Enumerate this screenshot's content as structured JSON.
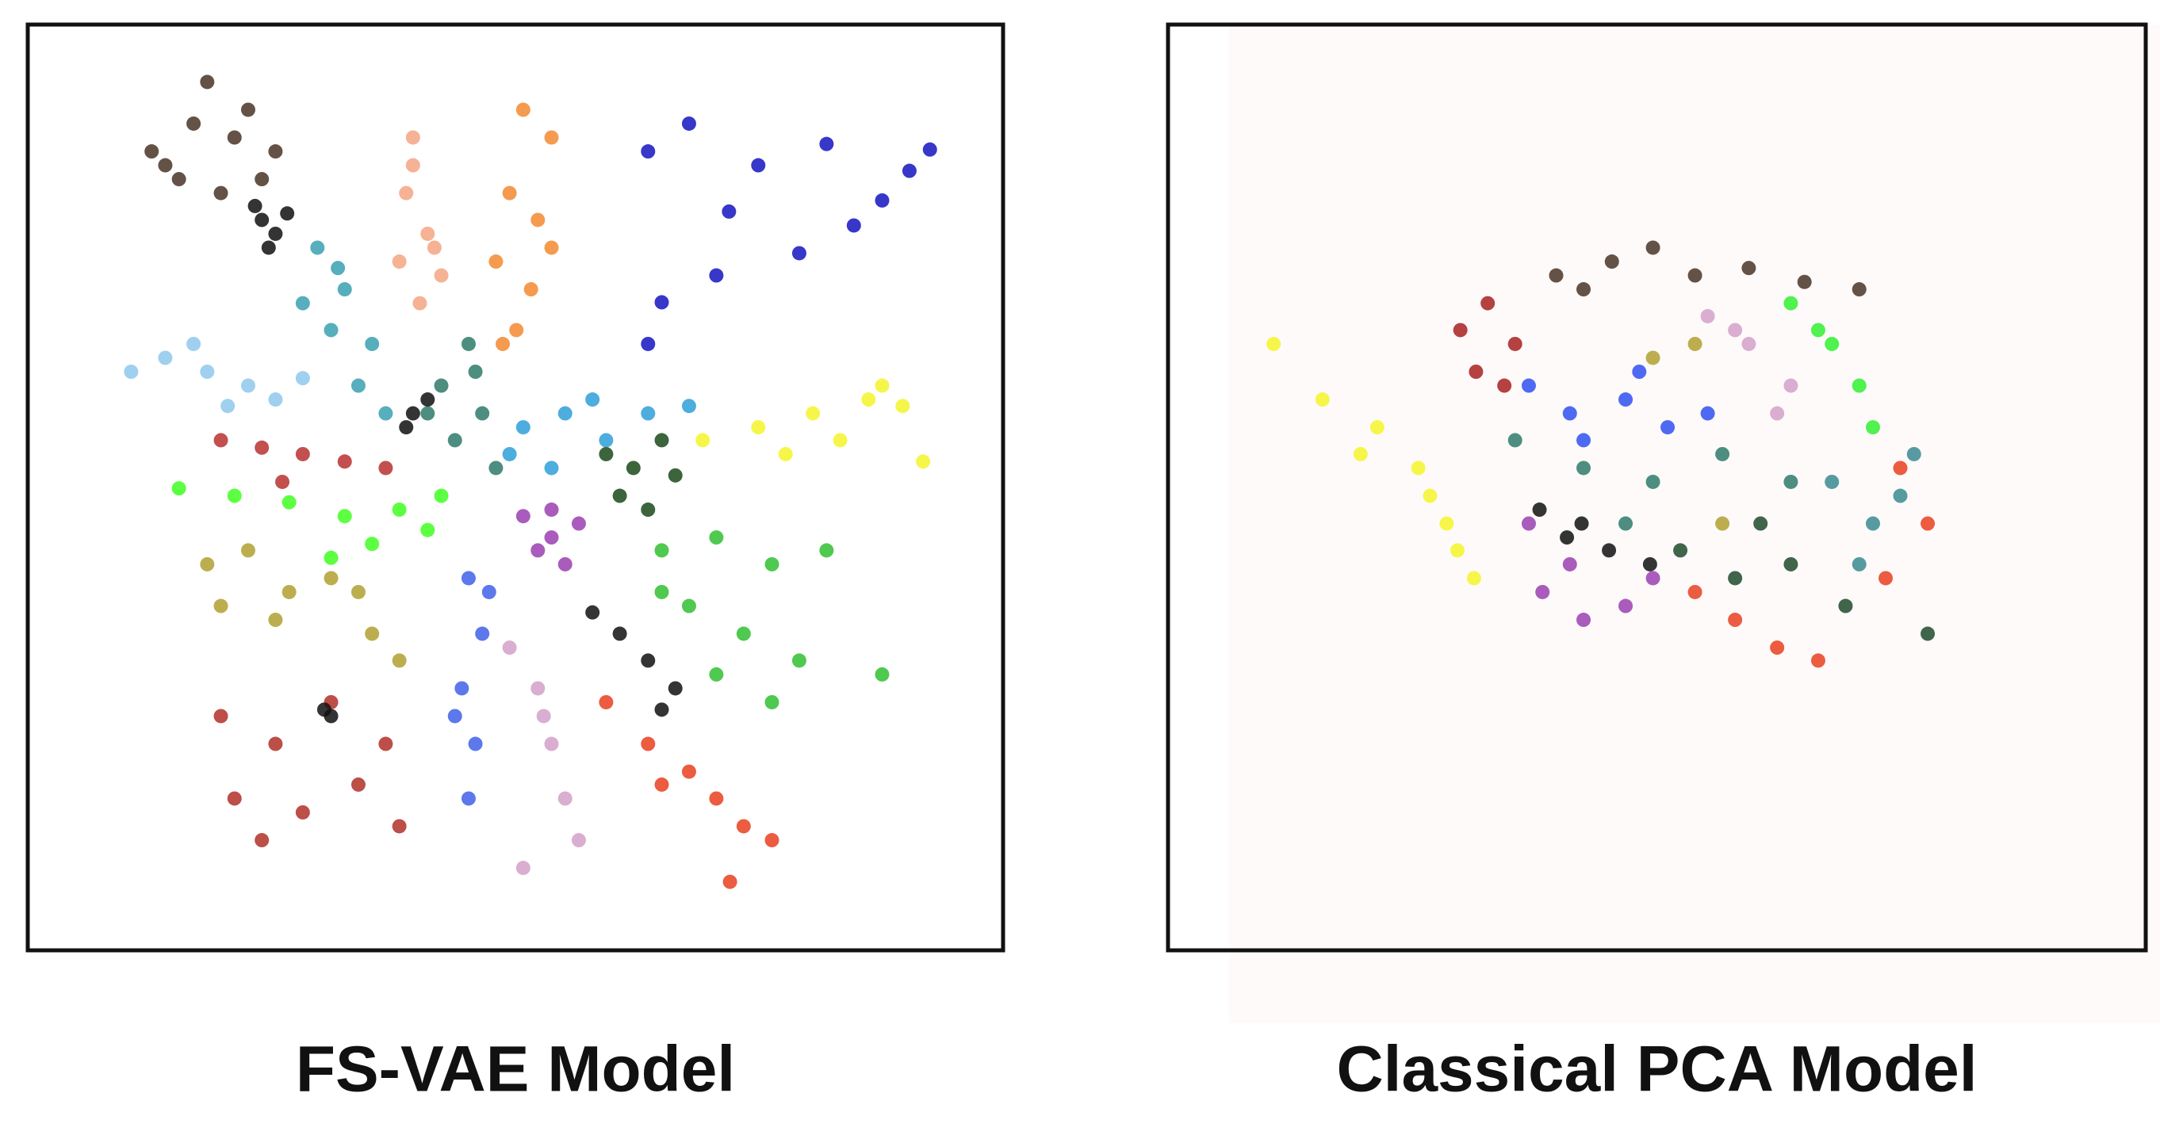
{
  "chart_data": [
    {
      "type": "scatter",
      "title": "FS-VAE  Model",
      "xlim": [
        0,
        100
      ],
      "ylim": [
        0,
        100
      ],
      "series": [
        {
          "color": "#4a3426",
          "x": [
            12.7,
            17.0,
            21.2,
            25.4,
            15.5,
            19.8,
            24.0,
            18.4,
            22.6,
            14.1
          ],
          "y": [
            86.3,
            89.3,
            87.8,
            86.3,
            83.3,
            81.8,
            83.3,
            93.8,
            90.8,
            84.8
          ]
        },
        {
          "color": "#111111",
          "x": [
            24.0,
            25.4,
            23.3,
            26.6,
            24.7
          ],
          "y": [
            78.9,
            77.4,
            80.4,
            79.6,
            75.9
          ]
        },
        {
          "color": "#f4a582",
          "x": [
            39.5,
            38.8,
            41.0,
            38.1,
            42.4,
            40.2,
            41.7,
            39.5
          ],
          "y": [
            87.8,
            81.8,
            77.4,
            74.4,
            72.9,
            69.9,
            75.9,
            84.8
          ]
        },
        {
          "color": "#f28a30",
          "x": [
            50.8,
            53.7,
            49.4,
            52.3,
            48.0,
            51.6,
            50.1,
            53.7,
            48.7
          ],
          "y": [
            90.8,
            87.8,
            81.8,
            78.9,
            74.4,
            71.4,
            67.0,
            75.9,
            65.5
          ]
        },
        {
          "color": "#1414c0",
          "x": [
            63.6,
            67.8,
            74.9,
            81.9,
            71.9,
            79.1,
            84.7,
            90.4,
            92.5,
            65.0,
            70.6,
            63.6,
            87.6
          ],
          "y": [
            86.3,
            89.3,
            84.8,
            87.1,
            79.8,
            75.3,
            78.3,
            84.2,
            86.5,
            70.0,
            72.9,
            65.5,
            81.0
          ]
        },
        {
          "color": "#3aa0b0",
          "x": [
            29.7,
            32.5,
            31.1,
            35.3,
            28.2,
            33.9,
            36.7,
            31.8
          ],
          "y": [
            75.9,
            71.4,
            67.0,
            65.5,
            69.9,
            61.0,
            58.0,
            73.7
          ]
        },
        {
          "color": "#8ec8ec",
          "x": [
            10.6,
            14.1,
            18.4,
            22.6,
            25.4,
            17.0,
            28.2,
            20.5
          ],
          "y": [
            62.5,
            64.0,
            62.5,
            61.0,
            59.5,
            65.5,
            61.8,
            58.8
          ]
        },
        {
          "color": "#2e7a6a",
          "x": [
            42.4,
            45.2,
            46.6,
            43.8,
            48.0,
            41.0,
            45.9
          ],
          "y": [
            61.0,
            65.5,
            58.0,
            55.1,
            52.1,
            58.0,
            62.5
          ]
        },
        {
          "color": "#111111",
          "x": [
            39.5,
            41.0,
            38.8
          ],
          "y": [
            58.0,
            59.5,
            56.5
          ]
        },
        {
          "color": "#2e9fd8",
          "x": [
            50.8,
            55.1,
            59.3,
            63.6,
            67.8,
            53.7,
            57.9,
            49.4
          ],
          "y": [
            56.5,
            58.0,
            55.1,
            58.0,
            58.8,
            52.1,
            59.5,
            53.6
          ]
        },
        {
          "color": "#f5f52a",
          "x": [
            69.2,
            74.9,
            80.5,
            86.2,
            89.7,
            77.7,
            83.3,
            87.6,
            91.8
          ],
          "y": [
            55.1,
            56.5,
            58.0,
            59.5,
            58.8,
            53.6,
            55.1,
            61.0,
            52.8
          ]
        },
        {
          "color": "#1a4a1a",
          "x": [
            59.3,
            62.1,
            65.0,
            60.7,
            63.6,
            66.4
          ],
          "y": [
            53.6,
            52.1,
            55.1,
            49.1,
            47.6,
            51.3
          ]
        },
        {
          "color": "#b83030",
          "x": [
            19.8,
            24.0,
            28.2,
            32.5,
            36.7,
            26.1
          ],
          "y": [
            55.1,
            54.3,
            53.6,
            52.8,
            52.1,
            50.6
          ]
        },
        {
          "color": "#40ff20",
          "x": [
            15.5,
            21.2,
            26.8,
            32.5,
            38.1,
            42.4,
            35.3,
            31.1,
            41.0
          ],
          "y": [
            49.9,
            49.1,
            48.4,
            46.9,
            47.6,
            49.1,
            43.9,
            42.4,
            45.4
          ]
        },
        {
          "color": "#b0a030",
          "x": [
            18.4,
            22.6,
            26.8,
            31.1,
            35.3,
            38.1,
            25.4,
            19.8,
            33.9
          ],
          "y": [
            41.7,
            43.2,
            38.7,
            40.2,
            34.2,
            31.3,
            35.7,
            37.2,
            38.7
          ]
        },
        {
          "color": "#9a40b0",
          "x": [
            50.8,
            53.7,
            56.5,
            52.3,
            55.1,
            53.7
          ],
          "y": [
            46.9,
            47.6,
            46.1,
            43.2,
            41.7,
            44.6
          ]
        },
        {
          "color": "#30c030",
          "x": [
            65.0,
            70.6,
            76.3,
            81.9,
            67.8,
            73.4,
            79.1,
            70.6,
            87.6,
            76.3,
            65.0
          ],
          "y": [
            43.2,
            44.6,
            41.7,
            43.2,
            37.2,
            34.2,
            31.3,
            29.8,
            29.8,
            26.8,
            38.7
          ]
        },
        {
          "color": "#4060e8",
          "x": [
            45.2,
            46.6,
            44.5,
            45.9,
            45.2,
            47.3,
            43.8
          ],
          "y": [
            40.2,
            34.2,
            28.3,
            22.3,
            16.4,
            38.7,
            25.3
          ]
        },
        {
          "color": "#d4a0c8",
          "x": [
            49.4,
            52.3,
            53.7,
            55.1,
            56.5,
            50.8,
            52.9
          ],
          "y": [
            32.7,
            28.3,
            22.3,
            16.4,
            11.9,
            8.9,
            25.3
          ]
        },
        {
          "color": "#111111",
          "x": [
            57.9,
            60.7,
            63.6,
            66.4,
            65.0
          ],
          "y": [
            36.5,
            34.2,
            31.3,
            28.3,
            26.0
          ]
        },
        {
          "color": "#e84020",
          "x": [
            59.3,
            63.6,
            67.8,
            70.6,
            73.4,
            76.3,
            72.0,
            65.0
          ],
          "y": [
            26.8,
            22.3,
            19.3,
            16.4,
            13.4,
            11.9,
            7.4,
            17.9
          ]
        },
        {
          "color": "#b03028",
          "x": [
            19.8,
            25.4,
            31.1,
            36.7,
            21.2,
            28.2,
            33.9,
            38.1,
            24.0
          ],
          "y": [
            25.3,
            22.3,
            26.8,
            22.3,
            16.4,
            14.9,
            17.9,
            13.4,
            11.9
          ]
        },
        {
          "color": "#111111",
          "x": [
            30.4,
            31.1
          ],
          "y": [
            26.0,
            25.3
          ]
        }
      ]
    },
    {
      "type": "scatter",
      "title": "Classical PCA  Model",
      "xlim": [
        0,
        100
      ],
      "ylim": [
        0,
        100
      ],
      "series": [
        {
          "color": "#f5f52a",
          "x": [
            10.8,
            15.8,
            21.4,
            25.6,
            28.5,
            31.3,
            19.7,
            26.8,
            29.6
          ],
          "y": [
            65.5,
            59.5,
            56.5,
            52.1,
            46.1,
            40.2,
            53.6,
            49.1,
            43.2
          ]
        },
        {
          "color": "#a82020",
          "x": [
            29.9,
            32.7,
            35.5,
            31.5,
            34.4
          ],
          "y": [
            67.0,
            69.9,
            65.5,
            62.5,
            61.0
          ]
        },
        {
          "color": "#4a3426",
          "x": [
            39.7,
            45.4,
            49.6,
            53.9,
            59.4,
            65.1,
            70.7,
            42.5
          ],
          "y": [
            72.9,
            74.4,
            75.9,
            72.9,
            73.7,
            72.2,
            71.4,
            71.4
          ]
        },
        {
          "color": "#3050f0",
          "x": [
            36.9,
            41.1,
            46.8,
            51.1,
            42.5,
            48.2,
            55.2
          ],
          "y": [
            61.0,
            58.0,
            59.5,
            56.5,
            55.1,
            62.5,
            58.0
          ]
        },
        {
          "color": "#d4a0c8",
          "x": [
            55.2,
            59.4,
            63.7,
            62.3,
            58.0
          ],
          "y": [
            68.5,
            65.5,
            61.0,
            58.0,
            67.0
          ]
        },
        {
          "color": "#30f030",
          "x": [
            63.7,
            67.9,
            70.7,
            72.1,
            66.5
          ],
          "y": [
            69.9,
            65.5,
            61.0,
            56.5,
            67.0
          ]
        },
        {
          "color": "#b0a030",
          "x": [
            49.6,
            53.9,
            56.7
          ],
          "y": [
            64.0,
            65.5,
            46.1
          ]
        },
        {
          "color": "#2e7a6a",
          "x": [
            35.5,
            42.5,
            49.6,
            56.7,
            63.7,
            46.8
          ],
          "y": [
            55.1,
            52.1,
            50.6,
            53.6,
            50.6,
            46.1
          ]
        },
        {
          "color": "#111111",
          "x": [
            38.0,
            40.8,
            45.1,
            49.3,
            42.3
          ],
          "y": [
            47.6,
            44.6,
            43.2,
            41.7,
            46.1
          ]
        },
        {
          "color": "#9a40b0",
          "x": [
            36.9,
            38.3,
            42.5,
            46.8,
            49.6,
            41.1
          ],
          "y": [
            46.1,
            38.7,
            35.7,
            37.2,
            40.2,
            41.7
          ]
        },
        {
          "color": "#3a8a90",
          "x": [
            67.9,
            72.1,
            76.3,
            70.7,
            74.9
          ],
          "y": [
            50.6,
            46.1,
            53.6,
            41.7,
            49.1
          ]
        },
        {
          "color": "#e84020",
          "x": [
            53.9,
            58.0,
            62.3,
            66.5,
            74.9,
            77.7,
            73.4
          ],
          "y": [
            38.7,
            35.7,
            32.7,
            31.3,
            52.1,
            46.1,
            40.2
          ]
        },
        {
          "color": "#1e4a2a",
          "x": [
            52.4,
            58.0,
            63.7,
            69.3,
            77.7,
            60.6
          ],
          "y": [
            43.2,
            40.2,
            41.7,
            37.2,
            34.2,
            46.1
          ]
        }
      ]
    }
  ]
}
